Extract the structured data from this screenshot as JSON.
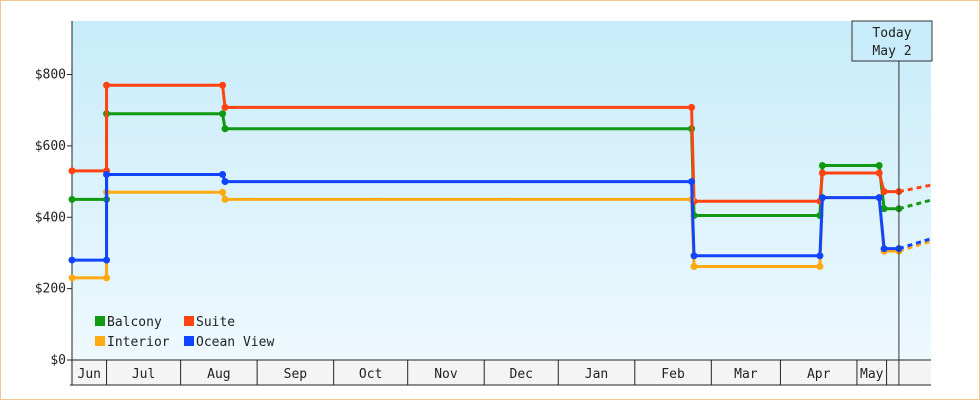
{
  "chart_data": {
    "type": "line",
    "step": true,
    "ylim": [
      0,
      950
    ],
    "yticks": [
      0,
      200,
      400,
      600,
      800
    ],
    "ytick_labels": [
      "$0",
      "$200",
      "$400",
      "$600",
      "$800"
    ],
    "xlim": [
      "2018-06-01",
      "2019-05-15"
    ],
    "months": [
      "Jun",
      "Jul",
      "Aug",
      "Sep",
      "Oct",
      "Nov",
      "Dec",
      "Jan",
      "Feb",
      "Mar",
      "Apr",
      "May"
    ],
    "month_bounds": [
      "2018-06-01",
      "2018-06-15",
      "2018-07-15",
      "2018-08-15",
      "2018-09-15",
      "2018-10-15",
      "2018-11-15",
      "2018-12-15",
      "2019-01-15",
      "2019-02-15",
      "2019-03-15",
      "2019-04-15",
      "2019-04-27",
      "2019-05-15"
    ],
    "today_label_line1": "Today",
    "today_label_line2": "May 2",
    "today_date": "2019-05-02",
    "legend_position": "bottom-left",
    "series": [
      {
        "name": "Balcony",
        "color": "#119911",
        "points": [
          [
            "2018-06-01",
            450
          ],
          [
            "2018-06-15",
            450
          ],
          [
            "2018-06-15",
            690
          ],
          [
            "2018-08-01",
            690
          ],
          [
            "2018-08-02",
            648
          ],
          [
            "2019-02-07",
            648
          ],
          [
            "2019-02-08",
            405
          ],
          [
            "2019-03-31",
            405
          ],
          [
            "2019-04-01",
            545
          ],
          [
            "2019-04-24",
            545
          ],
          [
            "2019-04-26",
            424
          ],
          [
            "2019-05-02",
            424
          ]
        ],
        "forecast": [
          [
            "2019-05-02",
            424
          ],
          [
            "2019-05-15",
            448
          ]
        ]
      },
      {
        "name": "Suite",
        "color": "#ff4411",
        "points": [
          [
            "2018-06-01",
            530
          ],
          [
            "2018-06-15",
            530
          ],
          [
            "2018-06-15",
            770
          ],
          [
            "2018-08-01",
            770
          ],
          [
            "2018-08-02",
            708
          ],
          [
            "2019-02-07",
            708
          ],
          [
            "2019-02-08",
            445
          ],
          [
            "2019-03-31",
            445
          ],
          [
            "2019-04-01",
            524
          ],
          [
            "2019-04-24",
            524
          ],
          [
            "2019-04-26",
            472
          ],
          [
            "2019-05-02",
            472
          ]
        ],
        "forecast": [
          [
            "2019-05-02",
            472
          ],
          [
            "2019-05-15",
            490
          ]
        ]
      },
      {
        "name": "Interior",
        "color": "#ffaa11",
        "points": [
          [
            "2018-06-01",
            230
          ],
          [
            "2018-06-15",
            230
          ],
          [
            "2018-06-15",
            470
          ],
          [
            "2018-08-01",
            470
          ],
          [
            "2018-08-02",
            450
          ],
          [
            "2019-02-07",
            450
          ],
          [
            "2019-02-08",
            262
          ],
          [
            "2019-03-31",
            262
          ],
          [
            "2019-04-01",
            455
          ],
          [
            "2019-04-24",
            455
          ],
          [
            "2019-04-26",
            305
          ],
          [
            "2019-05-02",
            305
          ]
        ],
        "forecast": [
          [
            "2019-05-02",
            305
          ],
          [
            "2019-05-15",
            333
          ]
        ]
      },
      {
        "name": "Ocean View",
        "color": "#1144ff",
        "points": [
          [
            "2018-06-01",
            280
          ],
          [
            "2018-06-15",
            280
          ],
          [
            "2018-06-15",
            520
          ],
          [
            "2018-08-01",
            520
          ],
          [
            "2018-08-02",
            500
          ],
          [
            "2019-02-07",
            500
          ],
          [
            "2019-02-08",
            292
          ],
          [
            "2019-03-31",
            292
          ],
          [
            "2019-04-01",
            455
          ],
          [
            "2019-04-24",
            455
          ],
          [
            "2019-04-26",
            312
          ],
          [
            "2019-05-02",
            312
          ]
        ],
        "forecast": [
          [
            "2019-05-02",
            312
          ],
          [
            "2019-05-15",
            340
          ]
        ]
      }
    ],
    "legend": [
      {
        "name": "Balcony",
        "color": "#119911"
      },
      {
        "name": "Suite",
        "color": "#ff4411"
      },
      {
        "name": "Interior",
        "color": "#ffaa11"
      },
      {
        "name": "Ocean View",
        "color": "#1144ff"
      }
    ]
  }
}
